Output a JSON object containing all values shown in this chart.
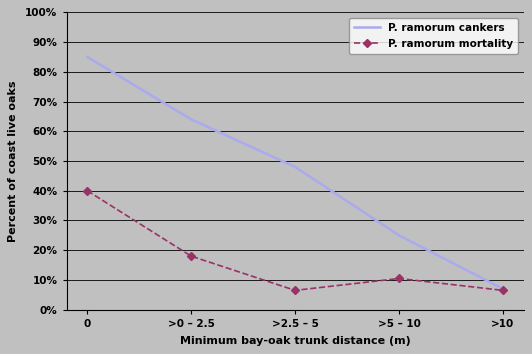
{
  "categories": [
    "0",
    ">0 – 2.5",
    ">2.5 – 5",
    ">5 – 10",
    ">10"
  ],
  "cankers_values": [
    0.85,
    0.64,
    0.48,
    0.25,
    0.07
  ],
  "mortality_values": [
    0.4,
    0.18,
    0.065,
    0.105,
    0.065
  ],
  "cankers_color": "#aaaaee",
  "mortality_color": "#993366",
  "xlabel": "Minimum bay-oak trunk distance (m)",
  "ylabel": "Percent of coast live oaks",
  "ylim": [
    0.0,
    1.0
  ],
  "yticks": [
    0.0,
    0.1,
    0.2,
    0.3,
    0.4,
    0.5,
    0.6,
    0.7,
    0.8,
    0.9,
    1.0
  ],
  "ytick_labels": [
    "0%",
    "10%",
    "20%",
    "30%",
    "40%",
    "50%",
    "60%",
    "70%",
    "80%",
    "90%",
    "100%"
  ],
  "legend_cankers": "P. ramorum cankers",
  "legend_mortality": "P. ramorum mortality",
  "bg_color": "#c0c0c0",
  "plot_bg_color": "#c0c0c0",
  "grid_color": "#000000",
  "spine_color": "#000000",
  "tick_color": "#000000",
  "label_color": "#000000",
  "figsize": [
    5.32,
    3.54
  ],
  "dpi": 100
}
